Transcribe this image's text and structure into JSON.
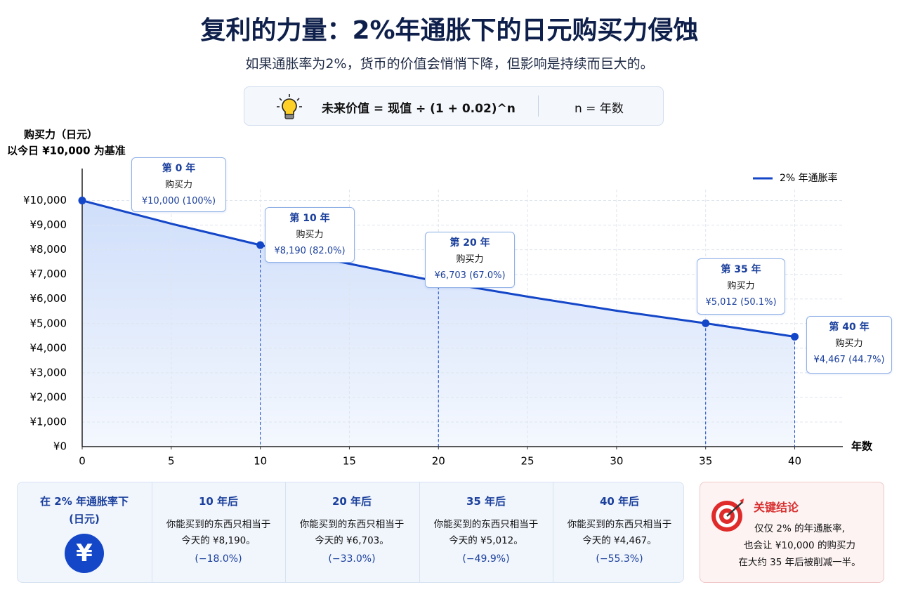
{
  "header": {
    "title": "复利的力量：2%年通胀下的日元购买力侵蚀",
    "subtitle": "如果通胀率为2%，货币的价值会悄悄下降，但影响是持续而巨大的。"
  },
  "formula": {
    "expression": "未来价值 = 现值 ÷ (1 + 0.02)^n",
    "note": "n = 年数"
  },
  "chart_data": {
    "type": "line",
    "y_label": [
      "购买力（日元）",
      "以今日 ¥10,000 为基准"
    ],
    "x_label": "年数",
    "x": [
      0,
      5,
      10,
      15,
      20,
      25,
      30,
      35,
      40
    ],
    "series": [
      {
        "name": "2% 年通胀率",
        "color": "#1446c8",
        "values": [
          10000,
          9057,
          8190,
          7430,
          6703,
          6095,
          5521,
          5012,
          4467
        ]
      }
    ],
    "xlim": [
      0,
      42.7
    ],
    "ylim": [
      0,
      11300
    ],
    "xticks": [
      0,
      5,
      10,
      15,
      20,
      25,
      30,
      35,
      40
    ],
    "yticks": [
      {
        "value": 0,
        "label": "¥0"
      },
      {
        "value": 1000,
        "label": "¥1,000"
      },
      {
        "value": 2000,
        "label": "¥2,000"
      },
      {
        "value": 3000,
        "label": "¥3,000"
      },
      {
        "value": 4000,
        "label": "¥4,000"
      },
      {
        "value": 5000,
        "label": "¥5,000"
      },
      {
        "value": 6000,
        "label": "¥6,000"
      },
      {
        "value": 7000,
        "label": "¥7,000"
      },
      {
        "value": 8000,
        "label": "¥8,000"
      },
      {
        "value": 9000,
        "label": "¥9,000"
      },
      {
        "value": 10000,
        "label": "¥10,000"
      }
    ],
    "grid": true,
    "legend": "upper right",
    "annotations": [
      {
        "x": 0,
        "title": "第 0 年",
        "text": "购买力",
        "label": "¥10,000 (100%)"
      },
      {
        "x": 10,
        "title": "第 10 年",
        "text": "购买力",
        "label": "¥8,190 (82.0%)"
      },
      {
        "x": 20,
        "title": "第 20 年",
        "text": "购买力",
        "label": "¥6,703 (67.0%)"
      },
      {
        "x": 35,
        "title": "第 35 年",
        "text": "购买力",
        "label": "¥5,012 (50.1%)"
      },
      {
        "x": 40,
        "title": "第 40 年",
        "text": "购买力",
        "label": "¥4,467 (44.7%)"
      }
    ]
  },
  "summary": {
    "header": [
      "在 2% 年通胀率下",
      "(日元)"
    ],
    "icon": "¥",
    "columns": [
      {
        "title": "10 年后",
        "text": [
          "你能买到的东西只相当于",
          "今天的 ¥8,190。"
        ],
        "change": "(−18.0%)"
      },
      {
        "title": "20 年后",
        "text": [
          "你能买到的东西只相当于",
          "今天的 ¥6,703。"
        ],
        "change": "(−33.0%)"
      },
      {
        "title": "35 年后",
        "text": [
          "你能买到的东西只相当于",
          "今天的 ¥5,012。"
        ],
        "change": "(−49.9%)"
      },
      {
        "title": "40 年后",
        "text": [
          "你能买到的东西只相当于",
          "今天的 ¥4,467。"
        ],
        "change": "(−55.3%)"
      }
    ]
  },
  "conclusion": {
    "title": "关键结论",
    "text": [
      "仅仅 2% 的年通胀率,",
      "也会让 ¥10,000 的购买力",
      "在大约 35 年后被削减一半。"
    ]
  }
}
